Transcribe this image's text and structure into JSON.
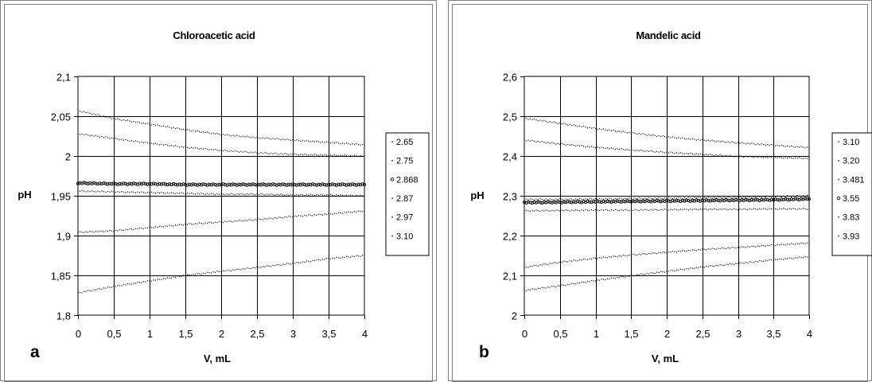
{
  "chart_data": [
    {
      "type": "scatter",
      "panel_label": "a",
      "title": "Chloroacetic acid",
      "xlabel": "V, mL",
      "ylabel": "pH",
      "xlim": [
        0,
        4
      ],
      "ylim": [
        1.8,
        2.1
      ],
      "x_ticks": [
        "0",
        "0,5",
        "1",
        "1,5",
        "2",
        "2,5",
        "3",
        "3,5",
        "4"
      ],
      "y_ticks": [
        "1,8",
        "1,85",
        "1,9",
        "1,95",
        "2",
        "2,05",
        "2,1"
      ],
      "grid": true,
      "legend_position": "right",
      "series": [
        {
          "name": "2.65",
          "marker": "dot",
          "x": [
            0,
            0.5,
            1,
            1.5,
            2,
            2.5,
            3,
            3.5,
            4
          ],
          "y": [
            2.057,
            2.047,
            2.04,
            2.033,
            2.027,
            2.023,
            2.02,
            2.017,
            2.014
          ]
        },
        {
          "name": "2.75",
          "marker": "dot",
          "x": [
            0,
            0.5,
            1,
            1.5,
            2,
            2.5,
            3,
            3.5,
            4
          ],
          "y": [
            2.028,
            2.022,
            2.016,
            2.011,
            2.007,
            2.004,
            2.002,
            2.001,
            2.0
          ]
        },
        {
          "name": "2.868",
          "marker": "diamond",
          "x": [
            0,
            0.5,
            1,
            1.5,
            2,
            2.5,
            3,
            3.5,
            4
          ],
          "y": [
            1.966,
            1.965,
            1.965,
            1.964,
            1.964,
            1.964,
            1.964,
            1.964,
            1.964
          ]
        },
        {
          "name": "2.87",
          "marker": "dot",
          "x": [
            0,
            0.5,
            1,
            1.5,
            2,
            2.5,
            3,
            3.5,
            4
          ],
          "y": [
            1.956,
            1.955,
            1.954,
            1.953,
            1.952,
            1.952,
            1.951,
            1.951,
            1.95
          ]
        },
        {
          "name": "2.97",
          "marker": "dot",
          "x": [
            0,
            0.5,
            1,
            1.5,
            2,
            2.5,
            3,
            3.5,
            4
          ],
          "y": [
            1.904,
            1.906,
            1.91,
            1.914,
            1.917,
            1.92,
            1.924,
            1.927,
            1.931
          ]
        },
        {
          "name": "3.10",
          "marker": "dot",
          "x": [
            0,
            0.5,
            1,
            1.5,
            2,
            2.5,
            3,
            3.5,
            4
          ],
          "y": [
            1.828,
            1.836,
            1.843,
            1.85,
            1.855,
            1.86,
            1.865,
            1.871,
            1.875
          ]
        }
      ]
    },
    {
      "type": "scatter",
      "panel_label": "b",
      "title": "Mandelic acid",
      "xlabel": "V, mL",
      "ylabel": "pH",
      "xlim": [
        0,
        4
      ],
      "ylim": [
        2.0,
        2.6
      ],
      "x_ticks": [
        "0",
        "0,5",
        "1",
        "1,5",
        "2",
        "2,5",
        "3",
        "3,5",
        "4"
      ],
      "y_ticks": [
        "2",
        "2,1",
        "2,2",
        "2,3",
        "2,4",
        "2,5",
        "2,6"
      ],
      "grid": true,
      "legend_position": "right",
      "series": [
        {
          "name": "3.10",
          "marker": "dot",
          "x": [
            0,
            0.5,
            1,
            1.5,
            2,
            2.5,
            3,
            3.5,
            4
          ],
          "y": [
            2.495,
            2.482,
            2.469,
            2.458,
            2.448,
            2.44,
            2.433,
            2.427,
            2.421
          ]
        },
        {
          "name": "3.20",
          "marker": "dot",
          "x": [
            0,
            0.5,
            1,
            1.5,
            2,
            2.5,
            3,
            3.5,
            4
          ],
          "y": [
            2.44,
            2.43,
            2.422,
            2.415,
            2.409,
            2.404,
            2.399,
            2.396,
            2.394
          ]
        },
        {
          "name": "3.481",
          "marker": "dot",
          "x": [
            0,
            0.5,
            1,
            1.5,
            2,
            2.5,
            3,
            3.5,
            4
          ],
          "y": [
            2.291,
            2.291,
            2.292,
            2.293,
            2.294,
            2.295,
            2.296,
            2.298,
            2.3
          ]
        },
        {
          "name": "3.55",
          "marker": "diamond",
          "x": [
            0,
            0.5,
            1,
            1.5,
            2,
            2.5,
            3,
            3.5,
            4
          ],
          "y": [
            2.283,
            2.284,
            2.285,
            2.286,
            2.287,
            2.288,
            2.289,
            2.29,
            2.292
          ]
        },
        {
          "name": "3.83",
          "marker": "dot",
          "x": [
            0,
            0.5,
            1,
            1.5,
            2,
            2.5,
            3,
            3.5,
            4
          ],
          "y": [
            2.262,
            2.263,
            2.264,
            2.264,
            2.265,
            2.266,
            2.266,
            2.267,
            2.267
          ]
        },
        {
          "name": "3.93",
          "marker": "dot",
          "x": [
            0,
            0.5,
            1,
            1.5,
            2,
            2.5,
            3,
            3.5,
            4
          ],
          "y": [
            2.12,
            2.133,
            2.143,
            2.151,
            2.158,
            2.165,
            2.17,
            2.176,
            2.181
          ]
        },
        {
          "name": "",
          "marker": "dot",
          "x": [
            0,
            0.5,
            1,
            1.5,
            2,
            2.5,
            3,
            3.5,
            4
          ],
          "y": [
            2.062,
            2.074,
            2.087,
            2.099,
            2.11,
            2.121,
            2.13,
            2.139,
            2.147
          ]
        }
      ]
    }
  ]
}
